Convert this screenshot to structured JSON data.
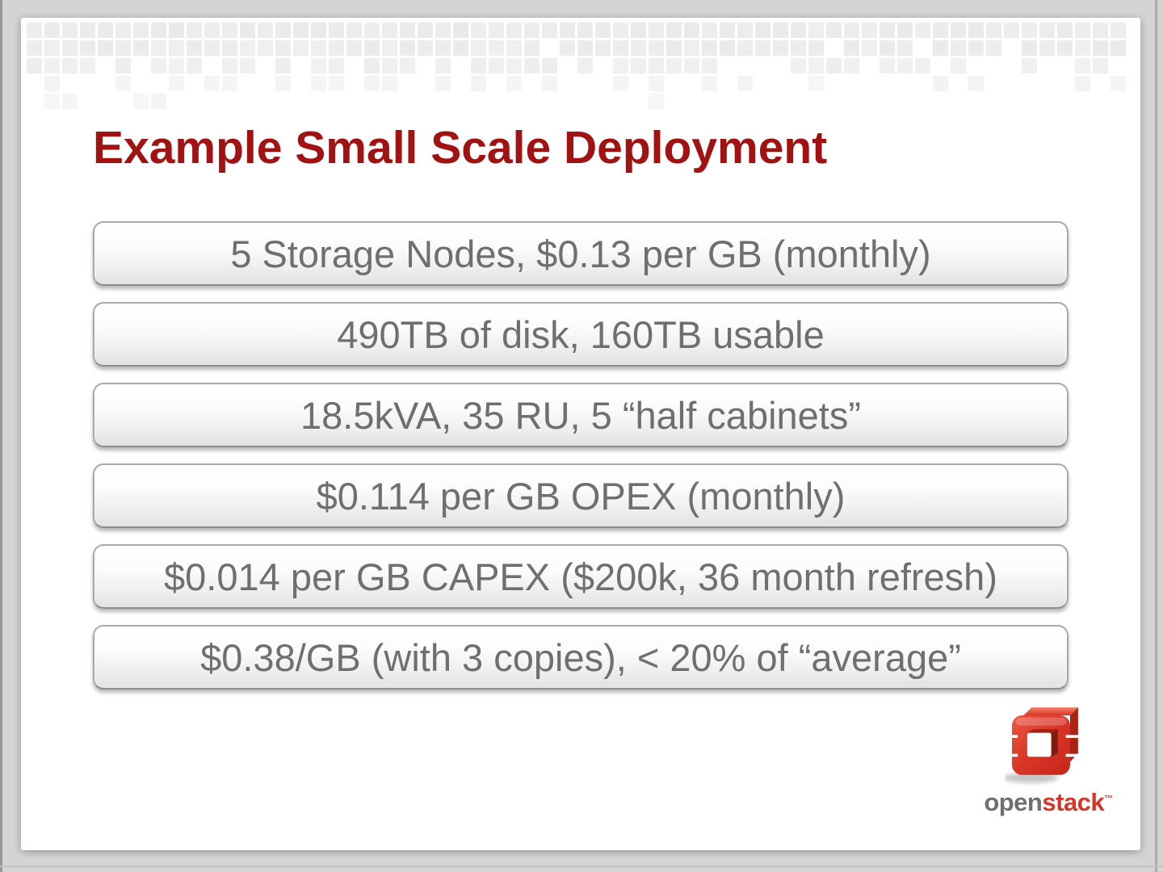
{
  "slide": {
    "title": "Example Small Scale Deployment",
    "bars": [
      {
        "label": "5 Storage Nodes, $0.13 per GB (monthly)"
      },
      {
        "label": "490TB of disk, 160TB usable"
      },
      {
        "label": "18.5kVA, 35 RU, 5 “half cabinets”"
      },
      {
        "label": "$0.114 per GB OPEX (monthly)"
      },
      {
        "label": "$0.014 per GB CAPEX ($200k, 36 month refresh)"
      },
      {
        "label": "$0.38/GB (with 3 copies), < 20% of “average”"
      }
    ],
    "logo": {
      "word_open": "open",
      "word_stack": "stack",
      "trademark": "™"
    }
  },
  "colors": {
    "title_red": "#a11212",
    "bar_text_gray": "#6f6f6f",
    "bar_border_gray": "#a9a9a9",
    "logo_red": "#d2372a",
    "logo_gray": "#6f6f6f",
    "canvas_gray": "#d4d4d4",
    "mosaic_square_gray": "#e9e9e9"
  }
}
